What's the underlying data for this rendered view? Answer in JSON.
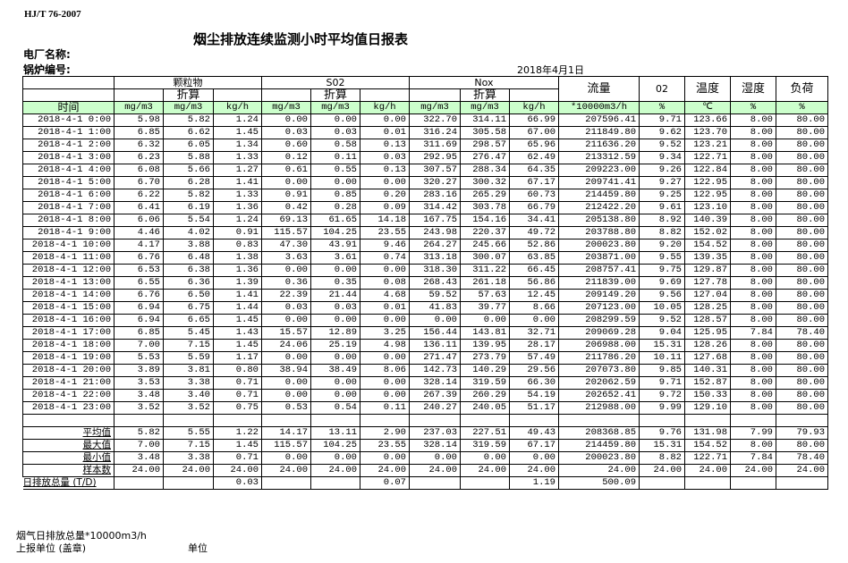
{
  "header": {
    "standard": "HJ/T  76-2007",
    "title": "烟尘排放连续监测小时平均值日报表",
    "plant_label": "电厂名称:",
    "boiler_label": "锅炉编号:",
    "date": "2018年4月1日"
  },
  "columns": {
    "particulate": "颗粒物",
    "so2": "S02",
    "nox": "Nox",
    "converted": "折算",
    "flow": "流量",
    "o2": "02",
    "temp": "温度",
    "humidity": "湿度",
    "load": "负荷",
    "time": "时间",
    "units": [
      "mg/m3",
      "mg/m3",
      "kg/h",
      "mg/m3",
      "mg/m3",
      "kg/h",
      "mg/m3",
      "mg/m3",
      "kg/h",
      "*10000m3/h",
      "%",
      "℃",
      "%",
      "%"
    ]
  },
  "rows": [
    [
      "2018-4-1 0:00",
      "5.98",
      "5.82",
      "1.24",
      "0.00",
      "0.00",
      "0.00",
      "322.70",
      "314.11",
      "66.99",
      "207596.41",
      "9.71",
      "123.66",
      "8.00",
      "80.00"
    ],
    [
      "2018-4-1 1:00",
      "6.85",
      "6.62",
      "1.45",
      "0.03",
      "0.03",
      "0.01",
      "316.24",
      "305.58",
      "67.00",
      "211849.80",
      "9.62",
      "123.70",
      "8.00",
      "80.00"
    ],
    [
      "2018-4-1 2:00",
      "6.32",
      "6.05",
      "1.34",
      "0.60",
      "0.58",
      "0.13",
      "311.69",
      "298.57",
      "65.96",
      "211636.20",
      "9.52",
      "123.21",
      "8.00",
      "80.00"
    ],
    [
      "2018-4-1 3:00",
      "6.23",
      "5.88",
      "1.33",
      "0.12",
      "0.11",
      "0.03",
      "292.95",
      "276.47",
      "62.49",
      "213312.59",
      "9.34",
      "122.71",
      "8.00",
      "80.00"
    ],
    [
      "2018-4-1 4:00",
      "6.08",
      "5.66",
      "1.27",
      "0.61",
      "0.55",
      "0.13",
      "307.57",
      "288.34",
      "64.35",
      "209223.00",
      "9.26",
      "122.84",
      "8.00",
      "80.00"
    ],
    [
      "2018-4-1 5:00",
      "6.70",
      "6.28",
      "1.41",
      "0.00",
      "0.00",
      "0.00",
      "320.27",
      "300.32",
      "67.17",
      "209741.41",
      "9.27",
      "122.95",
      "8.00",
      "80.00"
    ],
    [
      "2018-4-1 6:00",
      "6.22",
      "5.82",
      "1.33",
      "0.91",
      "0.85",
      "0.20",
      "283.16",
      "265.29",
      "60.73",
      "214459.80",
      "9.25",
      "122.95",
      "8.00",
      "80.00"
    ],
    [
      "2018-4-1 7:00",
      "6.41",
      "6.19",
      "1.36",
      "0.42",
      "0.28",
      "0.09",
      "314.42",
      "303.78",
      "66.79",
      "212422.20",
      "9.61",
      "123.10",
      "8.00",
      "80.00"
    ],
    [
      "2018-4-1 8:00",
      "6.06",
      "5.54",
      "1.24",
      "69.13",
      "61.65",
      "14.18",
      "167.75",
      "154.16",
      "34.41",
      "205138.80",
      "8.92",
      "140.39",
      "8.00",
      "80.00"
    ],
    [
      "2018-4-1 9:00",
      "4.46",
      "4.02",
      "0.91",
      "115.57",
      "104.25",
      "23.55",
      "243.98",
      "220.37",
      "49.72",
      "203788.80",
      "8.82",
      "152.02",
      "8.00",
      "80.00"
    ],
    [
      "2018-4-1 10:00",
      "4.17",
      "3.88",
      "0.83",
      "47.30",
      "43.91",
      "9.46",
      "264.27",
      "245.66",
      "52.86",
      "200023.80",
      "9.20",
      "154.52",
      "8.00",
      "80.00"
    ],
    [
      "2018-4-1 11:00",
      "6.76",
      "6.48",
      "1.38",
      "3.63",
      "3.61",
      "0.74",
      "313.18",
      "300.07",
      "63.85",
      "203871.00",
      "9.55",
      "139.35",
      "8.00",
      "80.00"
    ],
    [
      "2018-4-1 12:00",
      "6.53",
      "6.38",
      "1.36",
      "0.00",
      "0.00",
      "0.00",
      "318.30",
      "311.22",
      "66.45",
      "208757.41",
      "9.75",
      "129.87",
      "8.00",
      "80.00"
    ],
    [
      "2018-4-1 13:00",
      "6.55",
      "6.36",
      "1.39",
      "0.36",
      "0.35",
      "0.08",
      "268.43",
      "261.18",
      "56.86",
      "211839.00",
      "9.69",
      "127.78",
      "8.00",
      "80.00"
    ],
    [
      "2018-4-1 14:00",
      "6.76",
      "6.50",
      "1.41",
      "22.39",
      "21.44",
      "4.68",
      "59.52",
      "57.63",
      "12.45",
      "209149.20",
      "9.56",
      "127.04",
      "8.00",
      "80.00"
    ],
    [
      "2018-4-1 15:00",
      "6.94",
      "6.75",
      "1.44",
      "0.03",
      "0.03",
      "0.01",
      "41.83",
      "39.77",
      "8.66",
      "207123.00",
      "10.05",
      "128.25",
      "8.00",
      "80.00"
    ],
    [
      "2018-4-1 16:00",
      "6.94",
      "6.65",
      "1.45",
      "0.00",
      "0.00",
      "0.00",
      "0.00",
      "0.00",
      "0.00",
      "208299.59",
      "9.52",
      "128.57",
      "8.00",
      "80.00"
    ],
    [
      "2018-4-1 17:00",
      "6.85",
      "5.45",
      "1.43",
      "15.57",
      "12.89",
      "3.25",
      "156.44",
      "143.81",
      "32.71",
      "209069.28",
      "9.04",
      "125.95",
      "7.84",
      "78.40"
    ],
    [
      "2018-4-1 18:00",
      "7.00",
      "7.15",
      "1.45",
      "24.06",
      "25.19",
      "4.98",
      "136.11",
      "139.95",
      "28.17",
      "206988.00",
      "15.31",
      "128.26",
      "8.00",
      "80.00"
    ],
    [
      "2018-4-1 19:00",
      "5.53",
      "5.59",
      "1.17",
      "0.00",
      "0.00",
      "0.00",
      "271.47",
      "273.79",
      "57.49",
      "211786.20",
      "10.11",
      "127.68",
      "8.00",
      "80.00"
    ],
    [
      "2018-4-1 20:00",
      "3.89",
      "3.81",
      "0.80",
      "38.94",
      "38.49",
      "8.06",
      "142.73",
      "140.29",
      "29.56",
      "207073.80",
      "9.85",
      "140.31",
      "8.00",
      "80.00"
    ],
    [
      "2018-4-1 21:00",
      "3.53",
      "3.38",
      "0.71",
      "0.00",
      "0.00",
      "0.00",
      "328.14",
      "319.59",
      "66.30",
      "202062.59",
      "9.71",
      "152.87",
      "8.00",
      "80.00"
    ],
    [
      "2018-4-1 22:00",
      "3.48",
      "3.40",
      "0.71",
      "0.00",
      "0.00",
      "0.00",
      "267.39",
      "260.29",
      "54.19",
      "202652.41",
      "9.72",
      "150.33",
      "8.00",
      "80.00"
    ],
    [
      "2018-4-1 23:00",
      "3.52",
      "3.52",
      "0.75",
      "0.53",
      "0.54",
      "0.11",
      "240.27",
      "240.05",
      "51.17",
      "212988.00",
      "9.99",
      "129.10",
      "8.00",
      "80.00"
    ]
  ],
  "stats": [
    [
      "平均值",
      "5.82",
      "5.55",
      "1.22",
      "14.17",
      "13.11",
      "2.90",
      "237.03",
      "227.51",
      "49.43",
      "208368.85",
      "9.76",
      "131.98",
      "7.99",
      "79.93"
    ],
    [
      "最大值",
      "7.00",
      "7.15",
      "1.45",
      "115.57",
      "104.25",
      "23.55",
      "328.14",
      "319.59",
      "67.17",
      "214459.80",
      "15.31",
      "154.52",
      "8.00",
      "80.00"
    ],
    [
      "最小值",
      "3.48",
      "3.38",
      "0.71",
      "0.00",
      "0.00",
      "0.00",
      "0.00",
      "0.00",
      "0.00",
      "200023.80",
      "8.82",
      "122.71",
      "7.84",
      "78.40"
    ],
    [
      "样本数",
      "24.00",
      "24.00",
      "24.00",
      "24.00",
      "24.00",
      "24.00",
      "24.00",
      "24.00",
      "24.00",
      "24.00",
      "24.00",
      "24.00",
      "24.00",
      "24.00"
    ]
  ],
  "total": [
    "日排放总量 (T/D)",
    "",
    "",
    "0.03",
    "",
    "",
    "0.07",
    "",
    "",
    "1.19",
    "500.09",
    "",
    "",
    "",
    ""
  ],
  "footer": {
    "flue_gas_total": "烟气日排放总量*10000m3/h",
    "reporting_unit": "上报单位 (盖章)",
    "unit": "单位"
  },
  "colors": {
    "header_green": "#ccffcc"
  }
}
